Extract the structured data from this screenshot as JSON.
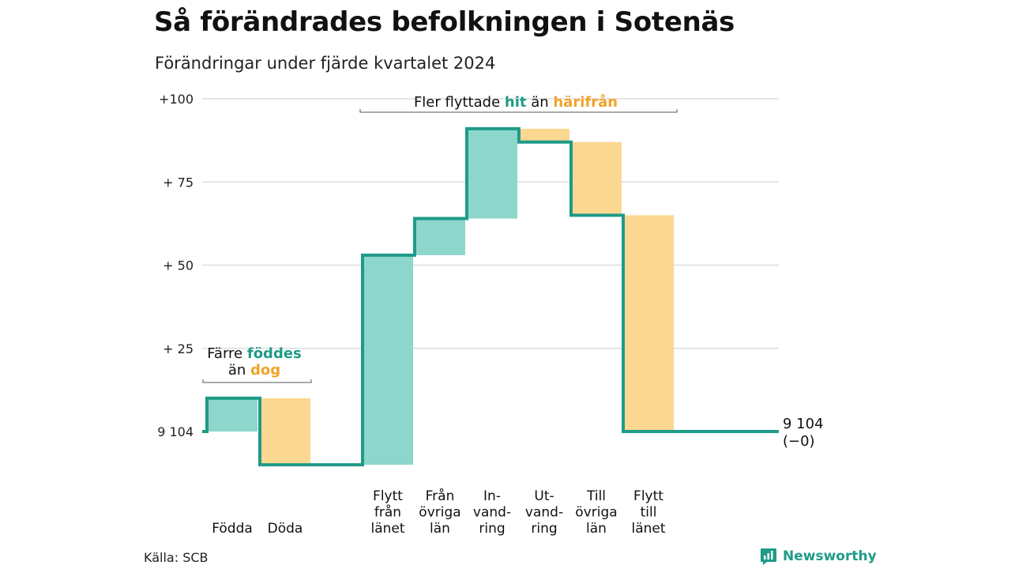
{
  "title": "Så förändrades befolkningen i Sotenäs",
  "subtitle": "Förändringar under fjärde kvartalet 2024",
  "source": "Källa: SCB",
  "brand": "Newsworthy",
  "colors": {
    "increase": "#8dd6cc",
    "decrease": "#fbd892",
    "line": "#1f9b88",
    "accent_teal": "#1f9b88",
    "accent_orange": "#f0a42a",
    "grid": "#dddddd"
  },
  "annotations": {
    "births_deaths": {
      "line1_prefix": "Färre ",
      "line1_highlight": "föddes",
      "line2_prefix": "än ",
      "line2_highlight": "dog"
    },
    "migration": {
      "prefix": "Fler flyttade ",
      "highlight1": "hit",
      "middle": " än ",
      "highlight2": "härifrån"
    }
  },
  "end_label": {
    "value": "9 104",
    "change": "(−0)"
  },
  "chart_data": {
    "type": "waterfall",
    "baseline": 9104,
    "y_ticks": [
      {
        "value": 0,
        "label": "9 104"
      },
      {
        "value": 25,
        "label": "+ 25"
      },
      {
        "value": 50,
        "label": "+ 50"
      },
      {
        "value": 75,
        "label": "+ 75"
      },
      {
        "value": 100,
        "label": "+100"
      }
    ],
    "ylim": [
      -10,
      100
    ],
    "steps": [
      {
        "label": [
          "Födda"
        ],
        "change": 10,
        "group": "natural"
      },
      {
        "label": [
          "Döda"
        ],
        "change": -20,
        "group": "natural"
      },
      {
        "label": [
          "Flytt",
          "från",
          "länet"
        ],
        "change": 63,
        "group": "migration"
      },
      {
        "label": [
          "Från",
          "övriga",
          "län"
        ],
        "change": 11,
        "group": "migration"
      },
      {
        "label": [
          "In-",
          "vand-",
          "ring"
        ],
        "change": 27,
        "group": "migration"
      },
      {
        "label": [
          "Ut-",
          "vand-",
          "ring"
        ],
        "change": -4,
        "group": "migration"
      },
      {
        "label": [
          "Till",
          "övriga",
          "län"
        ],
        "change": -22,
        "group": "migration"
      },
      {
        "label": [
          "Flytt",
          "till",
          "länet"
        ],
        "change": -65,
        "group": "migration"
      }
    ],
    "end_value": 0
  }
}
